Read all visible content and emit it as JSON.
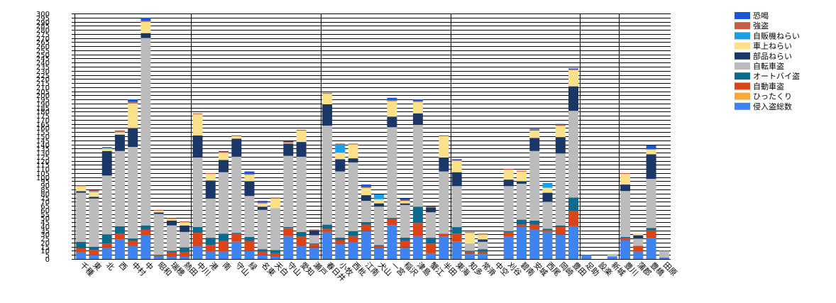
{
  "chart_data": {
    "type": "bar",
    "stacked": true,
    "ylim": [
      0,
      300
    ],
    "y_ticks": [
      0,
      5,
      10,
      15,
      20,
      25,
      30,
      35,
      40,
      45,
      50,
      55,
      60,
      65,
      70,
      75,
      80,
      85,
      90,
      95,
      100,
      105,
      110,
      115,
      120,
      125,
      130,
      135,
      140,
      145,
      150,
      155,
      160,
      165,
      170,
      175,
      180,
      185,
      190,
      195,
      200,
      205,
      210,
      215,
      220,
      225,
      230,
      235,
      240,
      245,
      250,
      255,
      260,
      265,
      270,
      275,
      280,
      285,
      290,
      295,
      300
    ],
    "grid": true,
    "legend_position": "right",
    "categories": [
      "千種",
      "東",
      "北",
      "西",
      "中村",
      "中",
      "昭和",
      "瑞穂",
      "熱田",
      "中川",
      "港",
      "南",
      "守山",
      "緑",
      "名東",
      "天白",
      "守山",
      "愛知",
      "瀬戸",
      "春日井",
      "小牧",
      "西枇",
      "江南",
      "犬山",
      "一宮",
      "稲沢",
      "津島",
      "蟹江",
      "半田",
      "東海",
      "知多",
      "常滑",
      "中空",
      "刈谷",
      "碧南",
      "安城",
      "西尾",
      "岡崎",
      "豊田",
      "足助",
      "設楽",
      "新城",
      "豊川",
      "蒲郡",
      "豊橋",
      "田原"
    ],
    "group_separators_after": [
      8,
      18,
      28,
      38,
      41
    ],
    "series": [
      {
        "name": "侵入盗総数",
        "color": "#3f83ee",
        "values": [
          8,
          5,
          14,
          24,
          16,
          29,
          3,
          3,
          3,
          16,
          9,
          9,
          21,
          10,
          5,
          3,
          28,
          16,
          14,
          33,
          18,
          20,
          34,
          13,
          41,
          14,
          28,
          7,
          27,
          21,
          6,
          6,
          0,
          27,
          39,
          36,
          33,
          30,
          40,
          5,
          0,
          3,
          23,
          9,
          26,
          2
        ]
      },
      {
        "name": "ひったくり",
        "color": "#f6ab36",
        "values": [
          0,
          0,
          0,
          0,
          0,
          0,
          0,
          0,
          0,
          0,
          0,
          0,
          0,
          0,
          0,
          0,
          0,
          0,
          0,
          0,
          0,
          0,
          0,
          0,
          0,
          0,
          0,
          0,
          0,
          0,
          0,
          0,
          0,
          0,
          0,
          0,
          0,
          0,
          0,
          0,
          0,
          0,
          0,
          0,
          0,
          0
        ]
      },
      {
        "name": "自動車盗",
        "color": "#db4318",
        "values": [
          5,
          6,
          5,
          7,
          6,
          7,
          1,
          5,
          5,
          16,
          8,
          13,
          10,
          12,
          4,
          4,
          10,
          11,
          4,
          4,
          5,
          8,
          8,
          3,
          8,
          8,
          16,
          12,
          4,
          10,
          3,
          3,
          0,
          6,
          3,
          6,
          2,
          9,
          19,
          0,
          0,
          0,
          3,
          7,
          9,
          0
        ]
      },
      {
        "name": "オートバイ盗",
        "color": "#0e6a8d",
        "values": [
          8,
          4,
          11,
          9,
          3,
          5,
          1,
          2,
          6,
          7,
          9,
          9,
          1,
          5,
          3,
          4,
          1,
          6,
          1,
          5,
          3,
          6,
          3,
          1,
          1,
          4,
          20,
          7,
          0,
          8,
          1,
          3,
          0,
          1,
          6,
          5,
          2,
          2,
          16,
          0,
          0,
          0,
          1,
          0,
          3,
          0
        ]
      },
      {
        "name": "自転車盗",
        "color": "#bcbcbc",
        "values": [
          60,
          59,
          72,
          92,
          112,
          229,
          50,
          31,
          19,
          85,
          48,
          75,
          93,
          50,
          48,
          51,
          87,
          92,
          10,
          121,
          81,
          84,
          26,
          47,
          111,
          40,
          100,
          31,
          76,
          50,
          9,
          9,
          0,
          55,
          44,
          85,
          33,
          88,
          106,
          0,
          0,
          3,
          56,
          9,
          60,
          8
        ]
      },
      {
        "name": "部品ねらい",
        "color": "#1b3767",
        "values": [
          2,
          2,
          30,
          20,
          23,
          6,
          2,
          6,
          8,
          27,
          22,
          15,
          22,
          18,
          4,
          0,
          15,
          18,
          6,
          26,
          15,
          5,
          7,
          4,
          13,
          2,
          14,
          6,
          17,
          17,
          0,
          3,
          0,
          8,
          3,
          16,
          11,
          20,
          30,
          0,
          0,
          0,
          8,
          4,
          30,
          0
        ]
      },
      {
        "name": "車上ねらい",
        "color": "#fce18b",
        "values": [
          6,
          6,
          3,
          3,
          30,
          14,
          2,
          2,
          4,
          26,
          8,
          9,
          3,
          8,
          4,
          12,
          1,
          14,
          0,
          13,
          8,
          17,
          9,
          5,
          19,
          3,
          14,
          0,
          26,
          14,
          13,
          6,
          0,
          12,
          12,
          9,
          6,
          14,
          20,
          0,
          0,
          0,
          13,
          2,
          6,
          0
        ]
      },
      {
        "name": "自販機ねらい",
        "color": "#1ba0e6",
        "values": [
          0,
          1,
          1,
          1,
          1,
          0,
          0,
          0,
          0,
          0,
          0,
          0,
          0,
          0,
          0,
          0,
          0,
          0,
          0,
          0,
          10,
          0,
          0,
          6,
          0,
          0,
          0,
          0,
          0,
          0,
          0,
          0,
          0,
          0,
          0,
          0,
          6,
          0,
          0,
          0,
          0,
          0,
          0,
          0,
          0,
          0
        ]
      },
      {
        "name": "強盗",
        "color": "#c65e46",
        "values": [
          1,
          1,
          1,
          1,
          1,
          1,
          1,
          1,
          1,
          1,
          1,
          1,
          1,
          1,
          1,
          1,
          1,
          1,
          1,
          1,
          1,
          1,
          1,
          0,
          1,
          1,
          1,
          1,
          1,
          1,
          1,
          1,
          0,
          1,
          1,
          1,
          0,
          1,
          1,
          0,
          0,
          0,
          1,
          0,
          0,
          0
        ]
      },
      {
        "name": "恐喝",
        "color": "#1a58d4",
        "values": [
          0,
          0,
          0,
          0,
          3,
          4,
          0,
          0,
          0,
          0,
          0,
          1,
          0,
          3,
          2,
          0,
          1,
          0,
          0,
          0,
          0,
          0,
          3,
          0,
          3,
          2,
          2,
          0,
          0,
          1,
          0,
          0,
          0,
          0,
          0,
          1,
          0,
          1,
          1,
          0,
          0,
          0,
          0,
          0,
          5,
          0
        ]
      }
    ],
    "legend_order": [
      "恐喝",
      "強盗",
      "自販機ねらい",
      "車上ねらい",
      "部品ねらい",
      "自転車盗",
      "オートバイ盗",
      "自動車盗",
      "ひったくり",
      "侵入盗総数"
    ]
  }
}
